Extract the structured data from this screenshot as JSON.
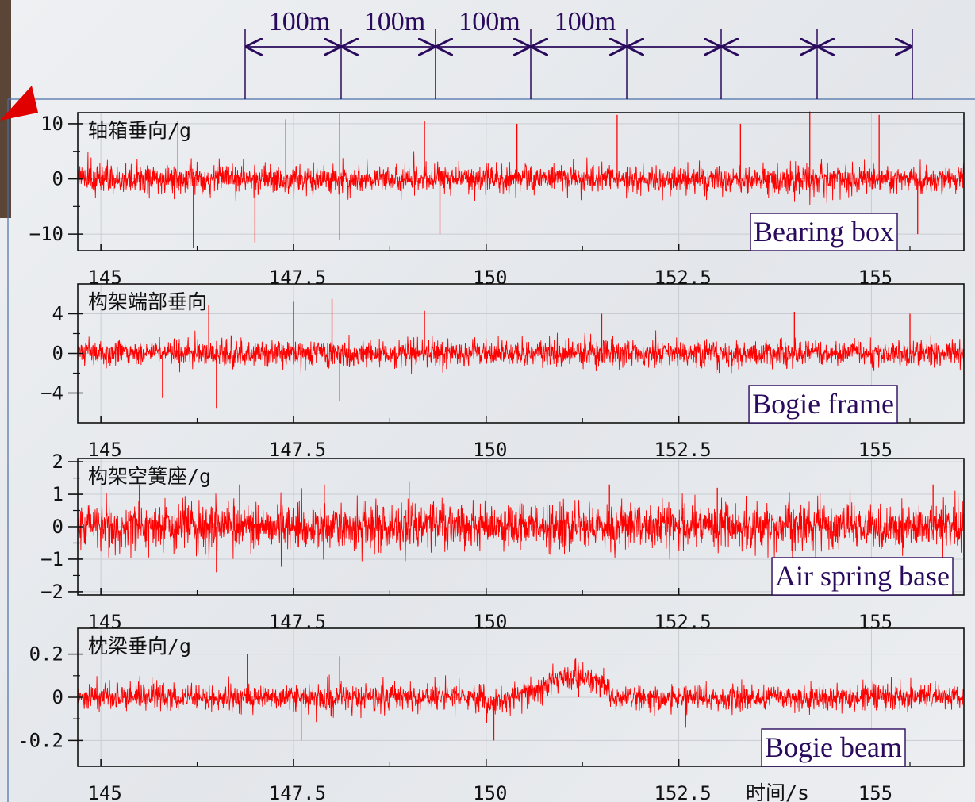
{
  "distance_markers": [
    "100m",
    "100m",
    "100m",
    "100m"
  ],
  "colors": {
    "signal": "#ff0000",
    "annotation": "#2a0a5c",
    "axis": "#111111",
    "frame_line": "#4a6fa8",
    "pointer": "#e00000"
  },
  "chart_data": [
    {
      "type": "line",
      "cn_label": "轴箱垂向/g",
      "en_label": "Bearing box",
      "xlim": [
        144.7,
        156.2
      ],
      "ylim": [
        -13,
        12
      ],
      "yticks": [
        10,
        0,
        -10
      ],
      "ytick_labels": [
        "10",
        "0",
        "−10"
      ],
      "xticks": [
        145,
        147.5,
        150,
        152.5,
        155
      ],
      "xtick_labels": [
        "145",
        "147.5",
        "150",
        "152.5",
        "155"
      ],
      "grid": true,
      "signal_amplitude": 3.2,
      "spikes": [
        [
          146.0,
          10.5
        ],
        [
          146.2,
          -12.5
        ],
        [
          147.0,
          -11.5
        ],
        [
          147.4,
          10.8
        ],
        [
          148.1,
          11.8
        ],
        [
          148.1,
          -11.0
        ],
        [
          149.2,
          10.5
        ],
        [
          149.4,
          -10.0
        ],
        [
          150.4,
          10.0
        ],
        [
          151.7,
          11.6
        ],
        [
          153.3,
          10.0
        ],
        [
          154.2,
          12.2
        ],
        [
          155.1,
          11.6
        ],
        [
          155.6,
          -10.0
        ]
      ],
      "envelope": null
    },
    {
      "type": "line",
      "cn_label": "构架端部垂向",
      "en_label": "Bogie frame",
      "xlim": [
        144.7,
        156.2
      ],
      "ylim": [
        -7,
        7
      ],
      "yticks": [
        4,
        0,
        -4
      ],
      "ytick_labels": [
        "4",
        "0",
        "−4"
      ],
      "xticks": [
        145,
        147.5,
        150,
        152.5,
        155
      ],
      "xtick_labels": [
        "145",
        "147.5",
        "150",
        "152.5",
        "155"
      ],
      "grid": true,
      "signal_amplitude": 1.7,
      "spikes": [
        [
          145.8,
          -4.5
        ],
        [
          146.4,
          4.9
        ],
        [
          146.5,
          -5.5
        ],
        [
          147.5,
          5.2
        ],
        [
          148.0,
          5.5
        ],
        [
          148.1,
          -4.8
        ],
        [
          149.2,
          4.3
        ],
        [
          151.5,
          4.0
        ],
        [
          154.0,
          4.2
        ],
        [
          155.5,
          4.0
        ]
      ],
      "envelope": null
    },
    {
      "type": "line",
      "cn_label": "构架空簧座/g",
      "en_label": "Air spring base",
      "xlim": [
        144.7,
        156.2
      ],
      "ylim": [
        -2.1,
        2.1
      ],
      "yticks": [
        2,
        1,
        0,
        -1,
        -2
      ],
      "ytick_labels": [
        "2",
        "1",
        "0",
        "−1",
        "−2"
      ],
      "xticks": [
        145,
        147.5,
        150,
        152.5,
        155
      ],
      "xtick_labels": [
        "145",
        "147.5",
        "150",
        "152.5",
        "155"
      ],
      "grid": true,
      "signal_amplitude": 0.9,
      "spikes": [
        [
          145.5,
          1.3
        ],
        [
          146.8,
          1.3
        ],
        [
          147.9,
          1.3
        ],
        [
          149.0,
          1.4
        ],
        [
          151.6,
          1.3
        ],
        [
          153.0,
          1.2
        ],
        [
          155.8,
          1.3
        ],
        [
          146.5,
          -1.4
        ]
      ],
      "envelope": null
    },
    {
      "type": "line",
      "cn_label": "枕梁垂向/g",
      "en_label": "Bogie beam",
      "xlim": [
        144.7,
        156.2
      ],
      "ylim": [
        -0.32,
        0.32
      ],
      "yticks": [
        0.2,
        0,
        -0.2
      ],
      "ytick_labels": [
        "0.2",
        "0",
        "-0.2"
      ],
      "xticks": [
        145,
        147.5,
        150,
        152.5,
        155
      ],
      "xtick_labels": [
        "145",
        "147.5",
        "150",
        "152.5",
        "155"
      ],
      "xlabel": "时间/s",
      "grid": true,
      "signal_amplitude": 0.075,
      "spikes": [
        [
          146.9,
          0.2
        ],
        [
          147.6,
          -0.2
        ],
        [
          148.1,
          0.19
        ],
        [
          150.1,
          -0.2
        ],
        [
          151.2,
          0.12
        ]
      ],
      "envelope": [
        [
          150.0,
          -0.05
        ],
        [
          151.0,
          0.09
        ],
        [
          151.2,
          0.1
        ],
        [
          151.6,
          0.05
        ]
      ]
    }
  ]
}
